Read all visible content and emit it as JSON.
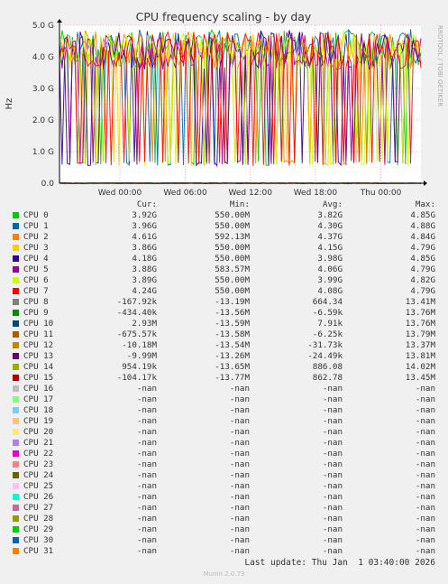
{
  "chart_data": {
    "type": "line",
    "title": "CPU frequency scaling - by day",
    "ylabel": "Hz",
    "watermark": "RRDTOOL / TOBI OETIKER",
    "ylim": [
      0,
      5000000000
    ],
    "y_ticks": [
      "0.0",
      "1.0 G",
      "2.0 G",
      "3.0 G",
      "4.0 G",
      "5.0 G"
    ],
    "x_ticks": [
      "Wed 00:00",
      "Wed 06:00",
      "Wed 12:00",
      "Wed 18:00",
      "Thu 00:00"
    ],
    "grid": true,
    "legend_placement": "bottom",
    "columns": [
      "Cur:",
      "Min:",
      "Avg:",
      "Max:"
    ],
    "series": [
      {
        "name": "CPU 0",
        "color": "#00cc00",
        "cur": "3.92G",
        "min": "550.00M",
        "avg": "3.82G",
        "max": "4.85G"
      },
      {
        "name": "CPU 1",
        "color": "#0066b3",
        "cur": "3.96G",
        "min": "550.00M",
        "avg": "4.30G",
        "max": "4.88G"
      },
      {
        "name": "CPU 2",
        "color": "#ff8000",
        "cur": "4.61G",
        "min": "592.13M",
        "avg": "4.37G",
        "max": "4.84G"
      },
      {
        "name": "CPU 3",
        "color": "#ffcc00",
        "cur": "3.86G",
        "min": "550.00M",
        "avg": "4.15G",
        "max": "4.79G"
      },
      {
        "name": "CPU 4",
        "color": "#330099",
        "cur": "4.18G",
        "min": "550.00M",
        "avg": "3.98G",
        "max": "4.85G"
      },
      {
        "name": "CPU 5",
        "color": "#990099",
        "cur": "3.88G",
        "min": "583.57M",
        "avg": "4.06G",
        "max": "4.79G"
      },
      {
        "name": "CPU 6",
        "color": "#ccff00",
        "cur": "3.89G",
        "min": "550.00M",
        "avg": "3.99G",
        "max": "4.82G"
      },
      {
        "name": "CPU 7",
        "color": "#ff0000",
        "cur": "4.24G",
        "min": "550.00M",
        "avg": "4.08G",
        "max": "4.79G"
      },
      {
        "name": "CPU 8",
        "color": "#808080",
        "cur": "-167.92k",
        "min": "-13.19M",
        "avg": "664.34",
        "max": "13.41M"
      },
      {
        "name": "CPU 9",
        "color": "#008f00",
        "cur": "-434.40k",
        "min": "-13.56M",
        "avg": "-6.59k",
        "max": "13.76M"
      },
      {
        "name": "CPU 10",
        "color": "#00487d",
        "cur": "2.93M",
        "min": "-13.59M",
        "avg": "7.91k",
        "max": "13.76M"
      },
      {
        "name": "CPU 11",
        "color": "#b35a00",
        "cur": "-675.57k",
        "min": "-13.58M",
        "avg": "-6.25k",
        "max": "13.79M"
      },
      {
        "name": "CPU 12",
        "color": "#b38f00",
        "cur": "-10.18M",
        "min": "-13.54M",
        "avg": "-31.73k",
        "max": "13.37M"
      },
      {
        "name": "CPU 13",
        "color": "#6b006b",
        "cur": "-9.99M",
        "min": "-13.26M",
        "avg": "-24.49k",
        "max": "13.81M"
      },
      {
        "name": "CPU 14",
        "color": "#8fb300",
        "cur": "954.19k",
        "min": "-13.65M",
        "avg": "886.08",
        "max": "14.02M"
      },
      {
        "name": "CPU 15",
        "color": "#b30000",
        "cur": "-104.17k",
        "min": "-13.77M",
        "avg": "862.78",
        "max": "13.45M"
      },
      {
        "name": "CPU 16",
        "color": "#bebebe",
        "cur": "-nan",
        "min": "-nan",
        "avg": "-nan",
        "max": "-nan"
      },
      {
        "name": "CPU 17",
        "color": "#80ff80",
        "cur": "-nan",
        "min": "-nan",
        "avg": "-nan",
        "max": "-nan"
      },
      {
        "name": "CPU 18",
        "color": "#80c9ff",
        "cur": "-nan",
        "min": "-nan",
        "avg": "-nan",
        "max": "-nan"
      },
      {
        "name": "CPU 19",
        "color": "#ffc080",
        "cur": "-nan",
        "min": "-nan",
        "avg": "-nan",
        "max": "-nan"
      },
      {
        "name": "CPU 20",
        "color": "#ffe680",
        "cur": "-nan",
        "min": "-nan",
        "avg": "-nan",
        "max": "-nan"
      },
      {
        "name": "CPU 21",
        "color": "#aa80ff",
        "cur": "-nan",
        "min": "-nan",
        "avg": "-nan",
        "max": "-nan"
      },
      {
        "name": "CPU 22",
        "color": "#ee00cc",
        "cur": "-nan",
        "min": "-nan",
        "avg": "-nan",
        "max": "-nan"
      },
      {
        "name": "CPU 23",
        "color": "#ff8080",
        "cur": "-nan",
        "min": "-nan",
        "avg": "-nan",
        "max": "-nan"
      },
      {
        "name": "CPU 24",
        "color": "#666600",
        "cur": "-nan",
        "min": "-nan",
        "avg": "-nan",
        "max": "-nan"
      },
      {
        "name": "CPU 25",
        "color": "#ffbfff",
        "cur": "-nan",
        "min": "-nan",
        "avg": "-nan",
        "max": "-nan"
      },
      {
        "name": "CPU 26",
        "color": "#00ffcc",
        "cur": "-nan",
        "min": "-nan",
        "avg": "-nan",
        "max": "-nan"
      },
      {
        "name": "CPU 27",
        "color": "#cc6699",
        "cur": "-nan",
        "min": "-nan",
        "avg": "-nan",
        "max": "-nan"
      },
      {
        "name": "CPU 28",
        "color": "#999900",
        "cur": "-nan",
        "min": "-nan",
        "avg": "-nan",
        "max": "-nan"
      },
      {
        "name": "CPU 29",
        "color": "#00cc00",
        "cur": "-nan",
        "min": "-nan",
        "avg": "-nan",
        "max": "-nan"
      },
      {
        "name": "CPU 30",
        "color": "#0066b3",
        "cur": "-nan",
        "min": "-nan",
        "avg": "-nan",
        "max": "-nan"
      },
      {
        "name": "CPU 31",
        "color": "#ff8000",
        "cur": "-nan",
        "min": "-nan",
        "avg": "-nan",
        "max": "-nan"
      }
    ]
  },
  "footer": {
    "last_update": "Last update: Thu Jan  1 03:40:00 2026",
    "version": "Munin 2.0.73"
  }
}
